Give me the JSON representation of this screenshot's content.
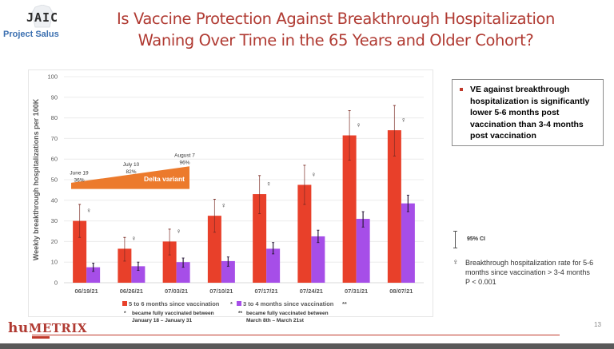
{
  "header": {
    "logo_text": "JAIC",
    "logo_subtitle": "Project Salus",
    "title_line1": "Is Vaccine Protection Against Breakthrough Hospitalization",
    "title_line2": "Waning Over Time in the 65 Years and Older Cohort?"
  },
  "chart_data": {
    "type": "bar",
    "title": "",
    "xlabel": "",
    "ylabel": "Weekly breakthrough hospitalizations per 100K",
    "ylim": [
      0,
      100
    ],
    "yticks": [
      0,
      10,
      20,
      30,
      40,
      50,
      60,
      70,
      80,
      90,
      100
    ],
    "grid": true,
    "categories": [
      "06/19/21",
      "06/26/21",
      "07/03/21",
      "07/10/21",
      "07/17/21",
      "07/24/21",
      "07/31/21",
      "08/07/21"
    ],
    "series": [
      {
        "name": "5 to 6 months since vaccination",
        "marker": "*",
        "color": "#e8402a",
        "values": [
          30,
          16.5,
          20,
          32.5,
          43,
          47.5,
          71.5,
          74
        ],
        "ci_low": [
          22,
          10.5,
          13.5,
          24.5,
          33.5,
          38,
          59.5,
          61.5
        ],
        "ci_high": [
          38,
          22,
          26,
          40.5,
          52,
          57,
          83.5,
          86
        ]
      },
      {
        "name": "3 to 4 months since vaccination",
        "marker": "**",
        "color": "#a64ee8",
        "values": [
          7.5,
          8,
          10,
          10.5,
          16.5,
          22.5,
          31,
          38.5
        ],
        "ci_low": [
          5.5,
          6,
          7.5,
          8,
          14,
          19.5,
          27,
          34.5
        ],
        "ci_high": [
          9.5,
          10,
          12,
          12.5,
          19.5,
          25.5,
          34.5,
          42.5
        ]
      }
    ],
    "significance_marker": "♀",
    "significant": [
      true,
      true,
      true,
      true,
      true,
      true,
      true,
      true
    ],
    "legend_position": "bottom",
    "annotations": {
      "delta_variant": {
        "label": "Delta variant",
        "color": "#ec7a2c",
        "points": [
          {
            "date": "June 19",
            "pct": "36%"
          },
          {
            "date": "July 10",
            "pct": "82%"
          },
          {
            "date": "August 7",
            "pct": "96%"
          }
        ]
      }
    },
    "footnotes": [
      {
        "marker": "*",
        "text_line1": "became fully vaccinated between",
        "text_line2": "January 18 – January 31"
      },
      {
        "marker": "**",
        "text_line1": "became fully vaccinated between",
        "text_line2": "March 8th – March 21st"
      }
    ]
  },
  "callout": {
    "text": "VE against breakthrough hospitalization is significantly lower 5-6 months post vaccination than 3-4 months post vaccination"
  },
  "legend_right": {
    "ci_label": "95% CI",
    "sig_symbol": "♀",
    "sig_text": "Breakthrough hospitalization rate for 5-6 months since vaccination > 3-4 months",
    "p_value": "P < 0.001"
  },
  "footer": {
    "logo_prefix": "hu",
    "logo_main": "METRIX",
    "page_number": "13"
  },
  "colors": {
    "title": "#b03a32",
    "red_series": "#e8402a",
    "purple_series": "#a64ee8",
    "delta": "#ec7a2c"
  }
}
